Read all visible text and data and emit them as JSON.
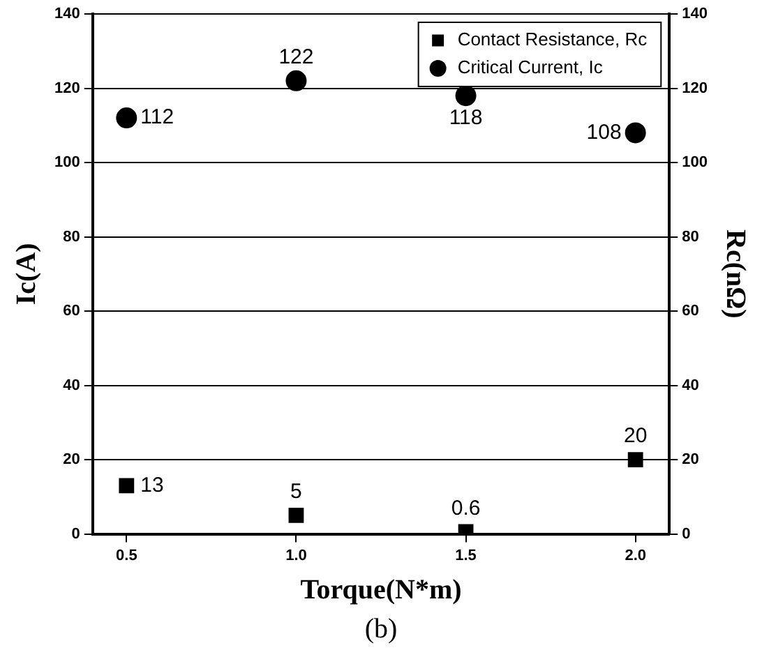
{
  "chart_data": {
    "type": "scatter",
    "xlabel": "Torque(N*m)",
    "ylabel": "Ic(A)",
    "y2label": "Rc(nΩ)",
    "x": [
      0.5,
      1.0,
      1.5,
      2.0
    ],
    "series": [
      {
        "name": "Contact Resistance, Rc",
        "color": "#000000",
        "values": [
          13,
          5,
          0.6,
          20
        ],
        "axis": "y2",
        "marker": "square"
      },
      {
        "name": "Critical Current, Ic",
        "color": "#000000",
        "values": [
          112,
          122,
          118,
          108
        ],
        "marker": "circle"
      }
    ],
    "xlim": [
      0.4,
      2.1
    ],
    "xticks": [
      0.5,
      {
        "value": 1,
        "label": "1.0"
      },
      1.5,
      {
        "value": 2,
        "label": "2.0"
      }
    ],
    "ylim": [
      0,
      140
    ],
    "yticks": [
      0,
      20,
      40,
      60,
      80,
      100,
      120,
      140
    ],
    "y2lim": [
      0,
      140
    ],
    "y2ticks": [
      0,
      20,
      40,
      60,
      80,
      100,
      120,
      140
    ],
    "grid": "y",
    "legend": "top right",
    "data_labels": true,
    "annotations": [
      "(b)"
    ]
  }
}
